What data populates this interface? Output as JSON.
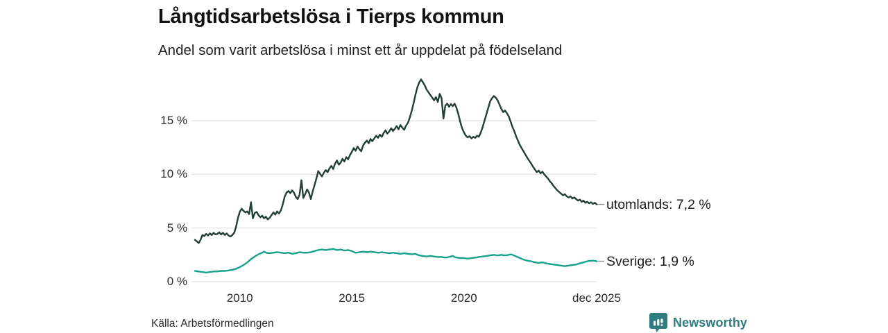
{
  "header": {
    "title": "Långtidsarbetslösa i Tierps kommun",
    "subtitle": "Andel som varit arbetslösa i minst ett år uppdelat på födelseland"
  },
  "footer": {
    "source": "Källa: Arbetsförmedlingen",
    "brand": "Newsworthy",
    "brand_color": "#2e7d81"
  },
  "chart_data": {
    "type": "line",
    "title": "Långtidsarbetslösa i Tierps kommun",
    "subtitle": "Andel som varit arbetslösa i minst ett år uppdelat på födelseland",
    "unit": "%",
    "grid": "horizontal",
    "grid_color": "#e1e1e1",
    "connector_color": "#999999",
    "x_range": [
      2008.0,
      2025.9167
    ],
    "ylim": [
      0,
      19.5
    ],
    "x_ticks": [
      {
        "label": "2010",
        "year": 2010
      },
      {
        "label": "2015",
        "year": 2015
      },
      {
        "label": "2020",
        "year": 2020
      },
      {
        "label": "dec 2025",
        "year": 2025.9167
      }
    ],
    "y_ticks": [
      {
        "label": "0 %",
        "value": 0
      },
      {
        "label": "5 %",
        "value": 5
      },
      {
        "label": "10 %",
        "value": 10
      },
      {
        "label": "15 %",
        "value": 15
      }
    ],
    "series": [
      {
        "name": "utomlands",
        "label": "utomlands: 7,2 %",
        "end_value": 7.2,
        "color": "#223e37",
        "start_year": 2008.0,
        "step_months": 1,
        "values": [
          3.9,
          3.75,
          3.6,
          3.9,
          4.35,
          4.25,
          4.45,
          4.3,
          4.5,
          4.35,
          4.55,
          4.4,
          4.45,
          4.6,
          4.4,
          4.55,
          4.35,
          4.5,
          4.3,
          4.2,
          4.35,
          4.55,
          5.1,
          5.9,
          6.5,
          6.8,
          6.6,
          6.45,
          6.55,
          6.3,
          7.4,
          5.9,
          6.4,
          6.5,
          6.2,
          6.0,
          6.15,
          5.9,
          6.05,
          5.8,
          5.95,
          6.2,
          6.45,
          6.25,
          6.55,
          6.35,
          6.65,
          7.2,
          7.9,
          8.3,
          8.45,
          8.25,
          8.5,
          8.3,
          7.9,
          7.7,
          8.1,
          9.45,
          7.8,
          8.15,
          8.6,
          8.3,
          7.7,
          8.4,
          9.0,
          9.6,
          10.3,
          10.05,
          9.8,
          10.15,
          10.4,
          10.2,
          10.55,
          10.8,
          10.5,
          11.0,
          11.3,
          10.9,
          11.1,
          11.45,
          11.2,
          11.6,
          11.4,
          11.8,
          12.1,
          12.45,
          12.2,
          12.6,
          12.35,
          12.15,
          12.7,
          12.95,
          13.15,
          12.9,
          13.3,
          13.1,
          13.35,
          13.6,
          13.4,
          13.7,
          13.5,
          13.85,
          14.1,
          13.8,
          14.0,
          14.3,
          14.05,
          14.25,
          14.5,
          14.2,
          14.6,
          14.35,
          14.15,
          14.55,
          14.8,
          15.3,
          15.9,
          16.6,
          17.4,
          18.1,
          18.55,
          18.85,
          18.6,
          18.3,
          17.9,
          17.65,
          17.4,
          17.15,
          16.9,
          17.2,
          16.75,
          17.5,
          17.1,
          15.2,
          16.4,
          16.6,
          16.3,
          16.55,
          16.35,
          16.6,
          16.2,
          15.6,
          14.9,
          14.3,
          13.9,
          13.6,
          13.45,
          13.55,
          13.35,
          13.5,
          13.4,
          13.6,
          13.5,
          13.9,
          14.4,
          15.0,
          15.6,
          16.2,
          16.8,
          17.1,
          17.3,
          17.15,
          16.9,
          16.5,
          16.1,
          15.8,
          15.95,
          15.7,
          15.4,
          14.9,
          14.4,
          14.0,
          13.5,
          13.1,
          12.7,
          12.4,
          12.1,
          11.8,
          11.5,
          11.25,
          11.0,
          10.7,
          10.45,
          10.2,
          10.35,
          10.1,
          10.25,
          10.0,
          9.8,
          9.6,
          9.35,
          9.15,
          8.9,
          8.7,
          8.5,
          8.35,
          8.2,
          8.05,
          8.15,
          7.95,
          7.85,
          7.95,
          7.75,
          7.85,
          7.7,
          7.55,
          7.65,
          7.45,
          7.55,
          7.35,
          7.45,
          7.3,
          7.4,
          7.25,
          7.35,
          7.2
        ]
      },
      {
        "name": "Sverige",
        "label": "Sverige: 1,9 %",
        "end_value": 1.9,
        "color": "#17a08a",
        "start_year": 2008.0,
        "step_months": 1,
        "values": [
          1.0,
          0.97,
          0.95,
          0.92,
          0.9,
          0.88,
          0.85,
          0.87,
          0.9,
          0.92,
          0.95,
          0.95,
          0.95,
          0.98,
          1.0,
          1.0,
          1.0,
          1.02,
          1.05,
          1.08,
          1.1,
          1.15,
          1.2,
          1.28,
          1.35,
          1.45,
          1.55,
          1.67,
          1.8,
          1.95,
          2.1,
          2.23,
          2.35,
          2.45,
          2.55,
          2.63,
          2.7,
          2.8,
          2.7,
          2.67,
          2.65,
          2.68,
          2.7,
          2.73,
          2.75,
          2.72,
          2.7,
          2.68,
          2.65,
          2.68,
          2.7,
          2.65,
          2.6,
          2.62,
          2.65,
          2.7,
          2.75,
          2.72,
          2.7,
          2.7,
          2.7,
          2.72,
          2.75,
          2.8,
          2.85,
          2.9,
          2.95,
          2.98,
          3.0,
          2.97,
          2.95,
          2.98,
          3.0,
          3.02,
          3.05,
          3.0,
          2.95,
          2.97,
          3.0,
          2.95,
          2.9,
          2.92,
          2.95,
          2.9,
          2.85,
          2.77,
          2.7,
          2.72,
          2.75,
          2.77,
          2.8,
          2.77,
          2.75,
          2.77,
          2.8,
          2.77,
          2.75,
          2.72,
          2.7,
          2.72,
          2.75,
          2.72,
          2.7,
          2.67,
          2.65,
          2.67,
          2.7,
          2.67,
          2.65,
          2.62,
          2.6,
          2.62,
          2.65,
          2.62,
          2.6,
          2.57,
          2.55,
          2.57,
          2.6,
          2.52,
          2.45,
          2.42,
          2.4,
          2.37,
          2.35,
          2.37,
          2.4,
          2.37,
          2.35,
          2.32,
          2.3,
          2.3,
          2.3,
          2.27,
          2.25,
          2.27,
          2.3,
          2.35,
          2.4,
          2.3,
          2.25,
          2.22,
          2.2,
          2.2,
          2.2,
          2.17,
          2.15,
          2.17,
          2.2,
          2.22,
          2.25,
          2.27,
          2.3,
          2.32,
          2.35,
          2.37,
          2.4,
          2.42,
          2.45,
          2.47,
          2.5,
          2.47,
          2.45,
          2.47,
          2.5,
          2.47,
          2.45,
          2.47,
          2.5,
          2.55,
          2.5,
          2.42,
          2.35,
          2.27,
          2.2,
          2.12,
          2.05,
          2.0,
          1.95,
          1.92,
          1.9,
          1.85,
          1.8,
          1.77,
          1.75,
          1.77,
          1.8,
          1.75,
          1.7,
          1.67,
          1.65,
          1.62,
          1.6,
          1.57,
          1.55,
          1.52,
          1.5,
          1.47,
          1.45,
          1.47,
          1.5,
          1.52,
          1.55,
          1.57,
          1.6,
          1.65,
          1.7,
          1.75,
          1.8,
          1.85,
          1.9,
          1.93,
          1.95,
          1.95,
          1.93,
          1.9
        ]
      }
    ]
  }
}
